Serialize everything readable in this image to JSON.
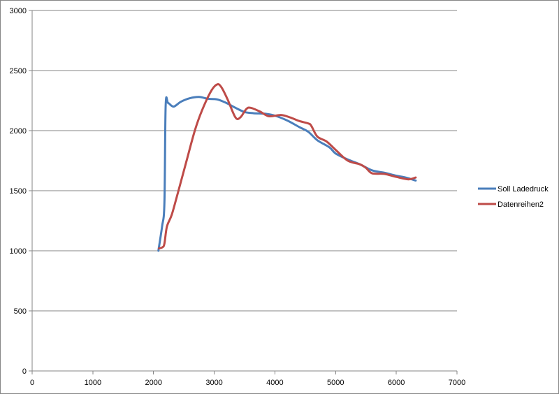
{
  "chart_data": {
    "type": "line",
    "title": "",
    "xlabel": "",
    "ylabel": "",
    "xlim": [
      0,
      7000
    ],
    "ylim": [
      0,
      3000
    ],
    "xticks": [
      0,
      1000,
      2000,
      3000,
      4000,
      5000,
      6000,
      7000
    ],
    "yticks": [
      0,
      500,
      1000,
      1500,
      2000,
      2500,
      3000
    ],
    "xtick_labels": [
      "0",
      "1000",
      "2000",
      "3000",
      "4000",
      "5000",
      "6000",
      "7000"
    ],
    "ytick_labels": [
      "0",
      "500",
      "1000",
      "1500",
      "2000",
      "2500",
      "3000"
    ],
    "grid": "horizontal",
    "legend_position": "right",
    "series": [
      {
        "name": "Soll Ladedruck",
        "color": "#4a7ebb",
        "points": [
          [
            2080,
            1000
          ],
          [
            2140,
            1200
          ],
          [
            2180,
            1400
          ],
          [
            2200,
            2210
          ],
          [
            2240,
            2230
          ],
          [
            2330,
            2200
          ],
          [
            2450,
            2240
          ],
          [
            2600,
            2270
          ],
          [
            2750,
            2280
          ],
          [
            2900,
            2265
          ],
          [
            3050,
            2260
          ],
          [
            3200,
            2230
          ],
          [
            3350,
            2190
          ],
          [
            3500,
            2155
          ],
          [
            3650,
            2145
          ],
          [
            3850,
            2140
          ],
          [
            4000,
            2125
          ],
          [
            4200,
            2085
          ],
          [
            4400,
            2030
          ],
          [
            4550,
            1990
          ],
          [
            4700,
            1920
          ],
          [
            4900,
            1860
          ],
          [
            5000,
            1810
          ],
          [
            5200,
            1760
          ],
          [
            5400,
            1720
          ],
          [
            5600,
            1670
          ],
          [
            5800,
            1650
          ],
          [
            6000,
            1625
          ],
          [
            6150,
            1610
          ],
          [
            6320,
            1585
          ]
        ]
      },
      {
        "name": "Datenreihen2",
        "color": "#be4b48",
        "points": [
          [
            2090,
            1020
          ],
          [
            2150,
            1030
          ],
          [
            2180,
            1060
          ],
          [
            2220,
            1200
          ],
          [
            2300,
            1300
          ],
          [
            2400,
            1480
          ],
          [
            2550,
            1760
          ],
          [
            2680,
            2000
          ],
          [
            2800,
            2170
          ],
          [
            2950,
            2330
          ],
          [
            3050,
            2385
          ],
          [
            3120,
            2360
          ],
          [
            3220,
            2260
          ],
          [
            3350,
            2110
          ],
          [
            3430,
            2110
          ],
          [
            3530,
            2180
          ],
          [
            3600,
            2190
          ],
          [
            3750,
            2160
          ],
          [
            3900,
            2120
          ],
          [
            4100,
            2130
          ],
          [
            4250,
            2110
          ],
          [
            4400,
            2080
          ],
          [
            4550,
            2060
          ],
          [
            4600,
            2040
          ],
          [
            4700,
            1950
          ],
          [
            4850,
            1910
          ],
          [
            5000,
            1840
          ],
          [
            5200,
            1750
          ],
          [
            5400,
            1720
          ],
          [
            5500,
            1690
          ],
          [
            5600,
            1645
          ],
          [
            5800,
            1640
          ],
          [
            6000,
            1615
          ],
          [
            6200,
            1595
          ],
          [
            6320,
            1610
          ]
        ]
      }
    ]
  }
}
